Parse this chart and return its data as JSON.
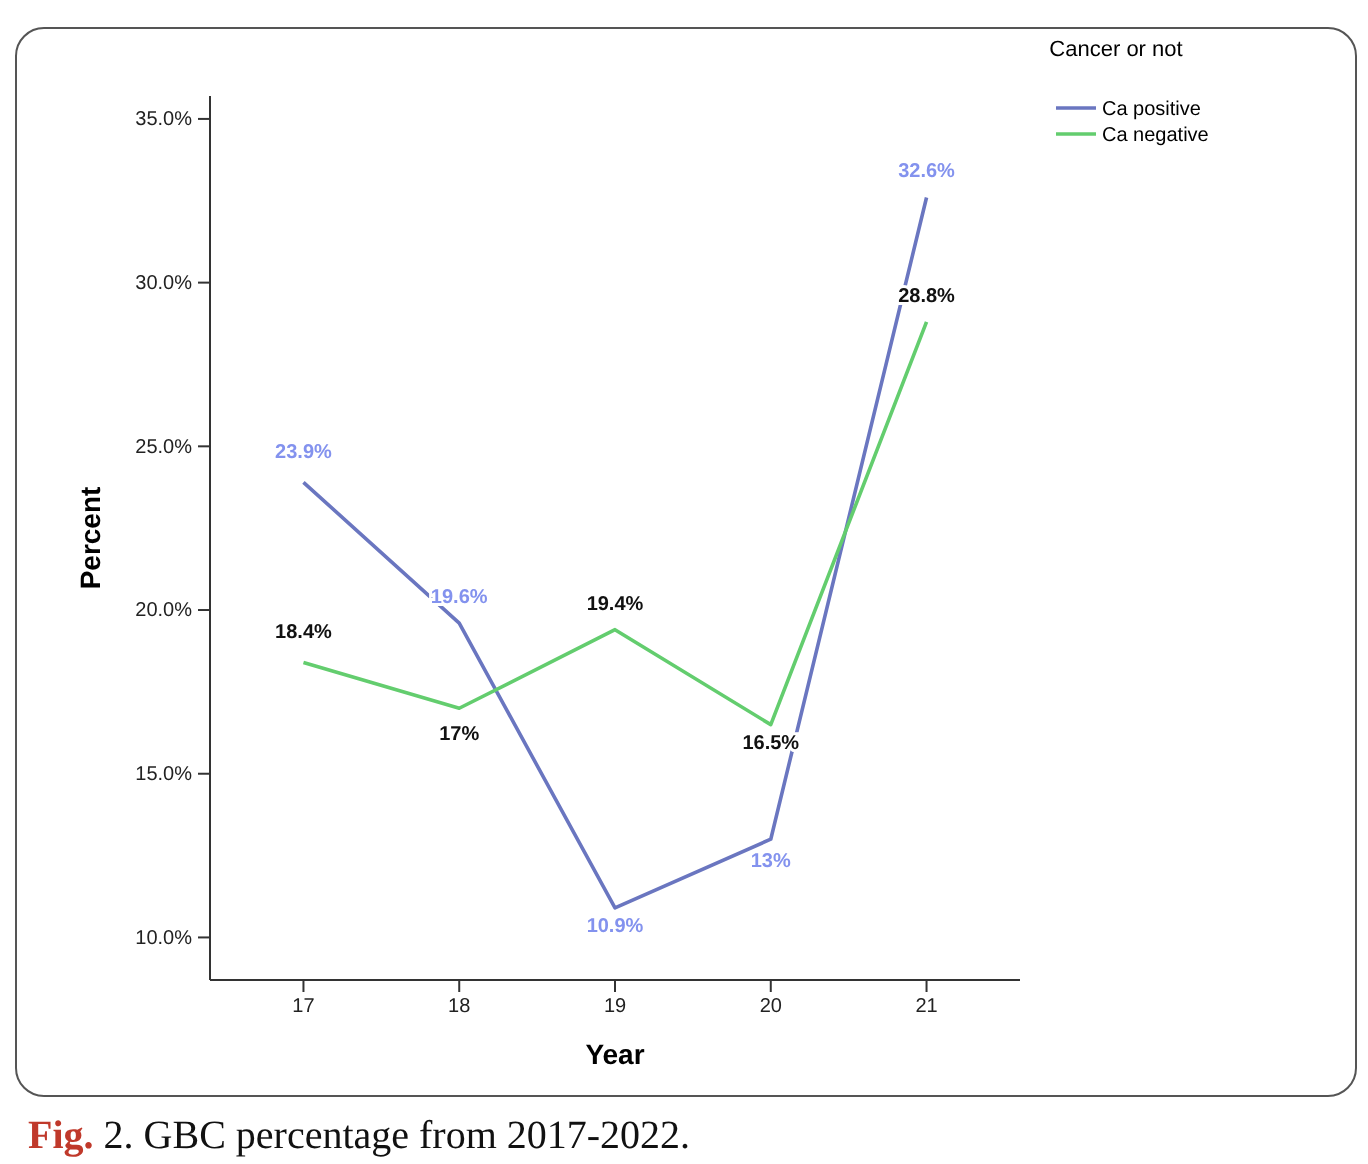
{
  "chart_data": {
    "type": "line",
    "xlabel": "Year",
    "ylabel": "Percent",
    "legend_title": "Cancer or not",
    "legend": "top right",
    "grid": false,
    "marker": "none",
    "line_style": "solid",
    "categories": [
      "17",
      "18",
      "19",
      "20",
      "21"
    ],
    "ylim": [
      8.7,
      35.7
    ],
    "yticks": [
      {
        "value": 10,
        "label": "10.0%"
      },
      {
        "value": 15,
        "label": "15.0%"
      },
      {
        "value": 20,
        "label": "20.0%"
      },
      {
        "value": 25,
        "label": "25.0%"
      },
      {
        "value": 30,
        "label": "30.0%"
      },
      {
        "value": 35,
        "label": "35.0%"
      }
    ],
    "series": [
      {
        "name": "Ca positive",
        "color": "#6a76c0",
        "values": [
          23.9,
          19.6,
          10.9,
          13,
          32.6
        ],
        "value_labels": [
          "23.9%",
          "19.6%",
          "10.9%",
          "13%",
          "32.6%"
        ]
      },
      {
        "name": "Ca negative",
        "color": "#63cd6e",
        "values": [
          18.4,
          17,
          19.4,
          16.5,
          28.8
        ],
        "value_labels": [
          "18.4%",
          "17%",
          "19.4%",
          "16.5%",
          "28.8%"
        ]
      }
    ],
    "annotations": [
      "Fig. 2. GBC percentage from 2017-2022."
    ]
  }
}
